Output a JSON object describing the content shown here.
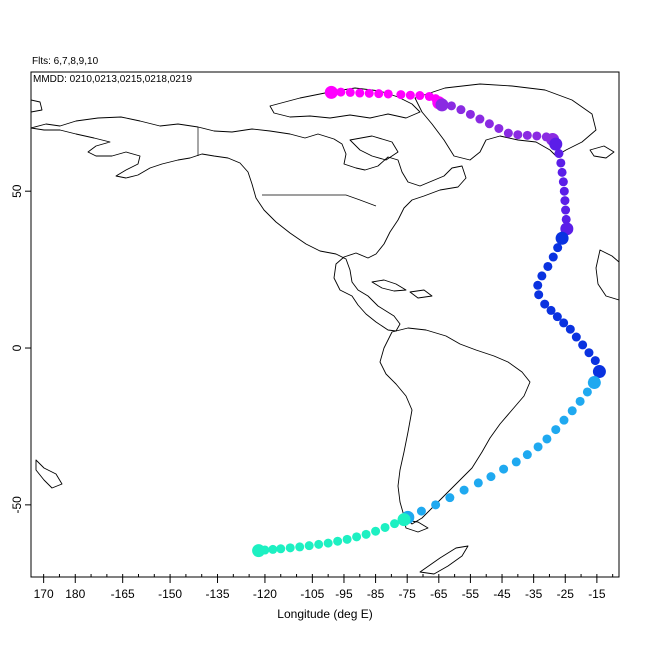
{
  "header": {
    "flights_label": "Flts: 6,7,8,9,10",
    "dates_label": "MMDD: 0210,0213,0215,0218,0219"
  },
  "axes": {
    "x_title": "Longitude (deg E)",
    "x_ticks": [
      {
        "value": 170,
        "label": "170"
      },
      {
        "value": 180,
        "label": "180"
      },
      {
        "value": 195,
        "label": "-165"
      },
      {
        "value": 210,
        "label": "-150"
      },
      {
        "value": 225,
        "label": "-135"
      },
      {
        "value": 240,
        "label": "-120"
      },
      {
        "value": 255,
        "label": "-105"
      },
      {
        "value": 265,
        "label": "-95"
      },
      {
        "value": 275,
        "label": "-85"
      },
      {
        "value": 285,
        "label": "-75"
      },
      {
        "value": 295,
        "label": "-65"
      },
      {
        "value": 305,
        "label": "-55"
      },
      {
        "value": 315,
        "label": "-45"
      },
      {
        "value": 325,
        "label": "-35"
      },
      {
        "value": 335,
        "label": "-25"
      },
      {
        "value": 345,
        "label": "-15"
      }
    ],
    "y_ticks": [
      {
        "value": 50,
        "label": "50"
      },
      {
        "value": 0,
        "label": "0"
      },
      {
        "value": -50,
        "label": "-50"
      }
    ],
    "xlim": [
      166,
      352
    ],
    "ylim": [
      -73,
      88
    ]
  },
  "chart_data": {
    "type": "scatter",
    "description_units": "longitude in degrees east (0-360), latitude in degrees north",
    "series": [
      {
        "color": "#ff00ff",
        "points": [
          [
            261,
            81.5
          ],
          [
            264,
            81.6
          ],
          [
            267,
            81.5
          ],
          [
            270,
            81.3
          ],
          [
            273,
            81.2
          ],
          [
            276,
            81.1
          ],
          [
            279,
            81
          ],
          [
            283,
            80.8
          ],
          [
            286,
            80.6
          ],
          [
            289,
            80.5
          ],
          [
            292,
            80.2
          ],
          [
            294,
            79.5
          ],
          [
            295,
            78.2
          ]
        ]
      },
      {
        "color": "#8a2be2",
        "points": [
          [
            296,
            77.5
          ],
          [
            299,
            77.2
          ],
          [
            302,
            76
          ],
          [
            305,
            74.5
          ],
          [
            308,
            73
          ],
          [
            311,
            71.5
          ],
          [
            314,
            70
          ],
          [
            317,
            68.5
          ],
          [
            320,
            68
          ],
          [
            323,
            67.8
          ],
          [
            326,
            67.6
          ],
          [
            329,
            67.3
          ],
          [
            331,
            66.5
          ]
        ]
      },
      {
        "color": "#5b1ee8",
        "points": [
          [
            332,
            65
          ],
          [
            333,
            62
          ],
          [
            333.6,
            59
          ],
          [
            334,
            56
          ],
          [
            334.4,
            53
          ],
          [
            334.7,
            50
          ],
          [
            334.9,
            47
          ],
          [
            335.1,
            44
          ],
          [
            335.3,
            41
          ],
          [
            335.5,
            38
          ]
        ]
      },
      {
        "color": "#0a32e0",
        "points": [
          [
            334,
            35
          ],
          [
            332.6,
            32
          ],
          [
            331.2,
            29
          ],
          [
            329.5,
            26
          ],
          [
            327.6,
            23
          ],
          [
            326.3,
            20
          ],
          [
            326.6,
            17
          ],
          [
            328.5,
            14
          ],
          [
            330.5,
            12
          ],
          [
            332.5,
            10
          ],
          [
            334.5,
            8
          ],
          [
            336.6,
            6
          ],
          [
            338.5,
            3.5
          ],
          [
            340.5,
            1
          ],
          [
            342.5,
            -1.5
          ],
          [
            344.5,
            -4
          ],
          [
            345.8,
            -7.5
          ]
        ]
      },
      {
        "color": "#1fa9f0",
        "points": [
          [
            344.2,
            -11
          ],
          [
            342,
            -14
          ],
          [
            339.7,
            -17
          ],
          [
            337.2,
            -20
          ],
          [
            334.6,
            -23
          ],
          [
            332,
            -26
          ],
          [
            329.2,
            -29
          ],
          [
            326.4,
            -31.5
          ],
          [
            323,
            -34
          ],
          [
            319.5,
            -36.3
          ],
          [
            315.5,
            -38.6
          ],
          [
            311.5,
            -41
          ],
          [
            307.5,
            -43
          ],
          [
            303,
            -45.3
          ],
          [
            298.5,
            -47.7
          ],
          [
            294,
            -50
          ],
          [
            289.5,
            -52
          ],
          [
            285.2,
            -54
          ]
        ]
      },
      {
        "color": "#1df0c2",
        "points": [
          [
            284,
            -54.7
          ],
          [
            281,
            -56
          ],
          [
            278,
            -57.2
          ],
          [
            275,
            -58.4
          ],
          [
            272,
            -59.4
          ],
          [
            269,
            -60.2
          ],
          [
            266,
            -61
          ],
          [
            263,
            -61.6
          ],
          [
            260,
            -62.2
          ],
          [
            257,
            -62.6
          ],
          [
            254,
            -63
          ],
          [
            251,
            -63.4
          ],
          [
            248,
            -63.7
          ],
          [
            245,
            -64
          ],
          [
            242.5,
            -64.2
          ],
          [
            240,
            -64.4
          ],
          [
            238,
            -64.6
          ]
        ]
      }
    ]
  }
}
